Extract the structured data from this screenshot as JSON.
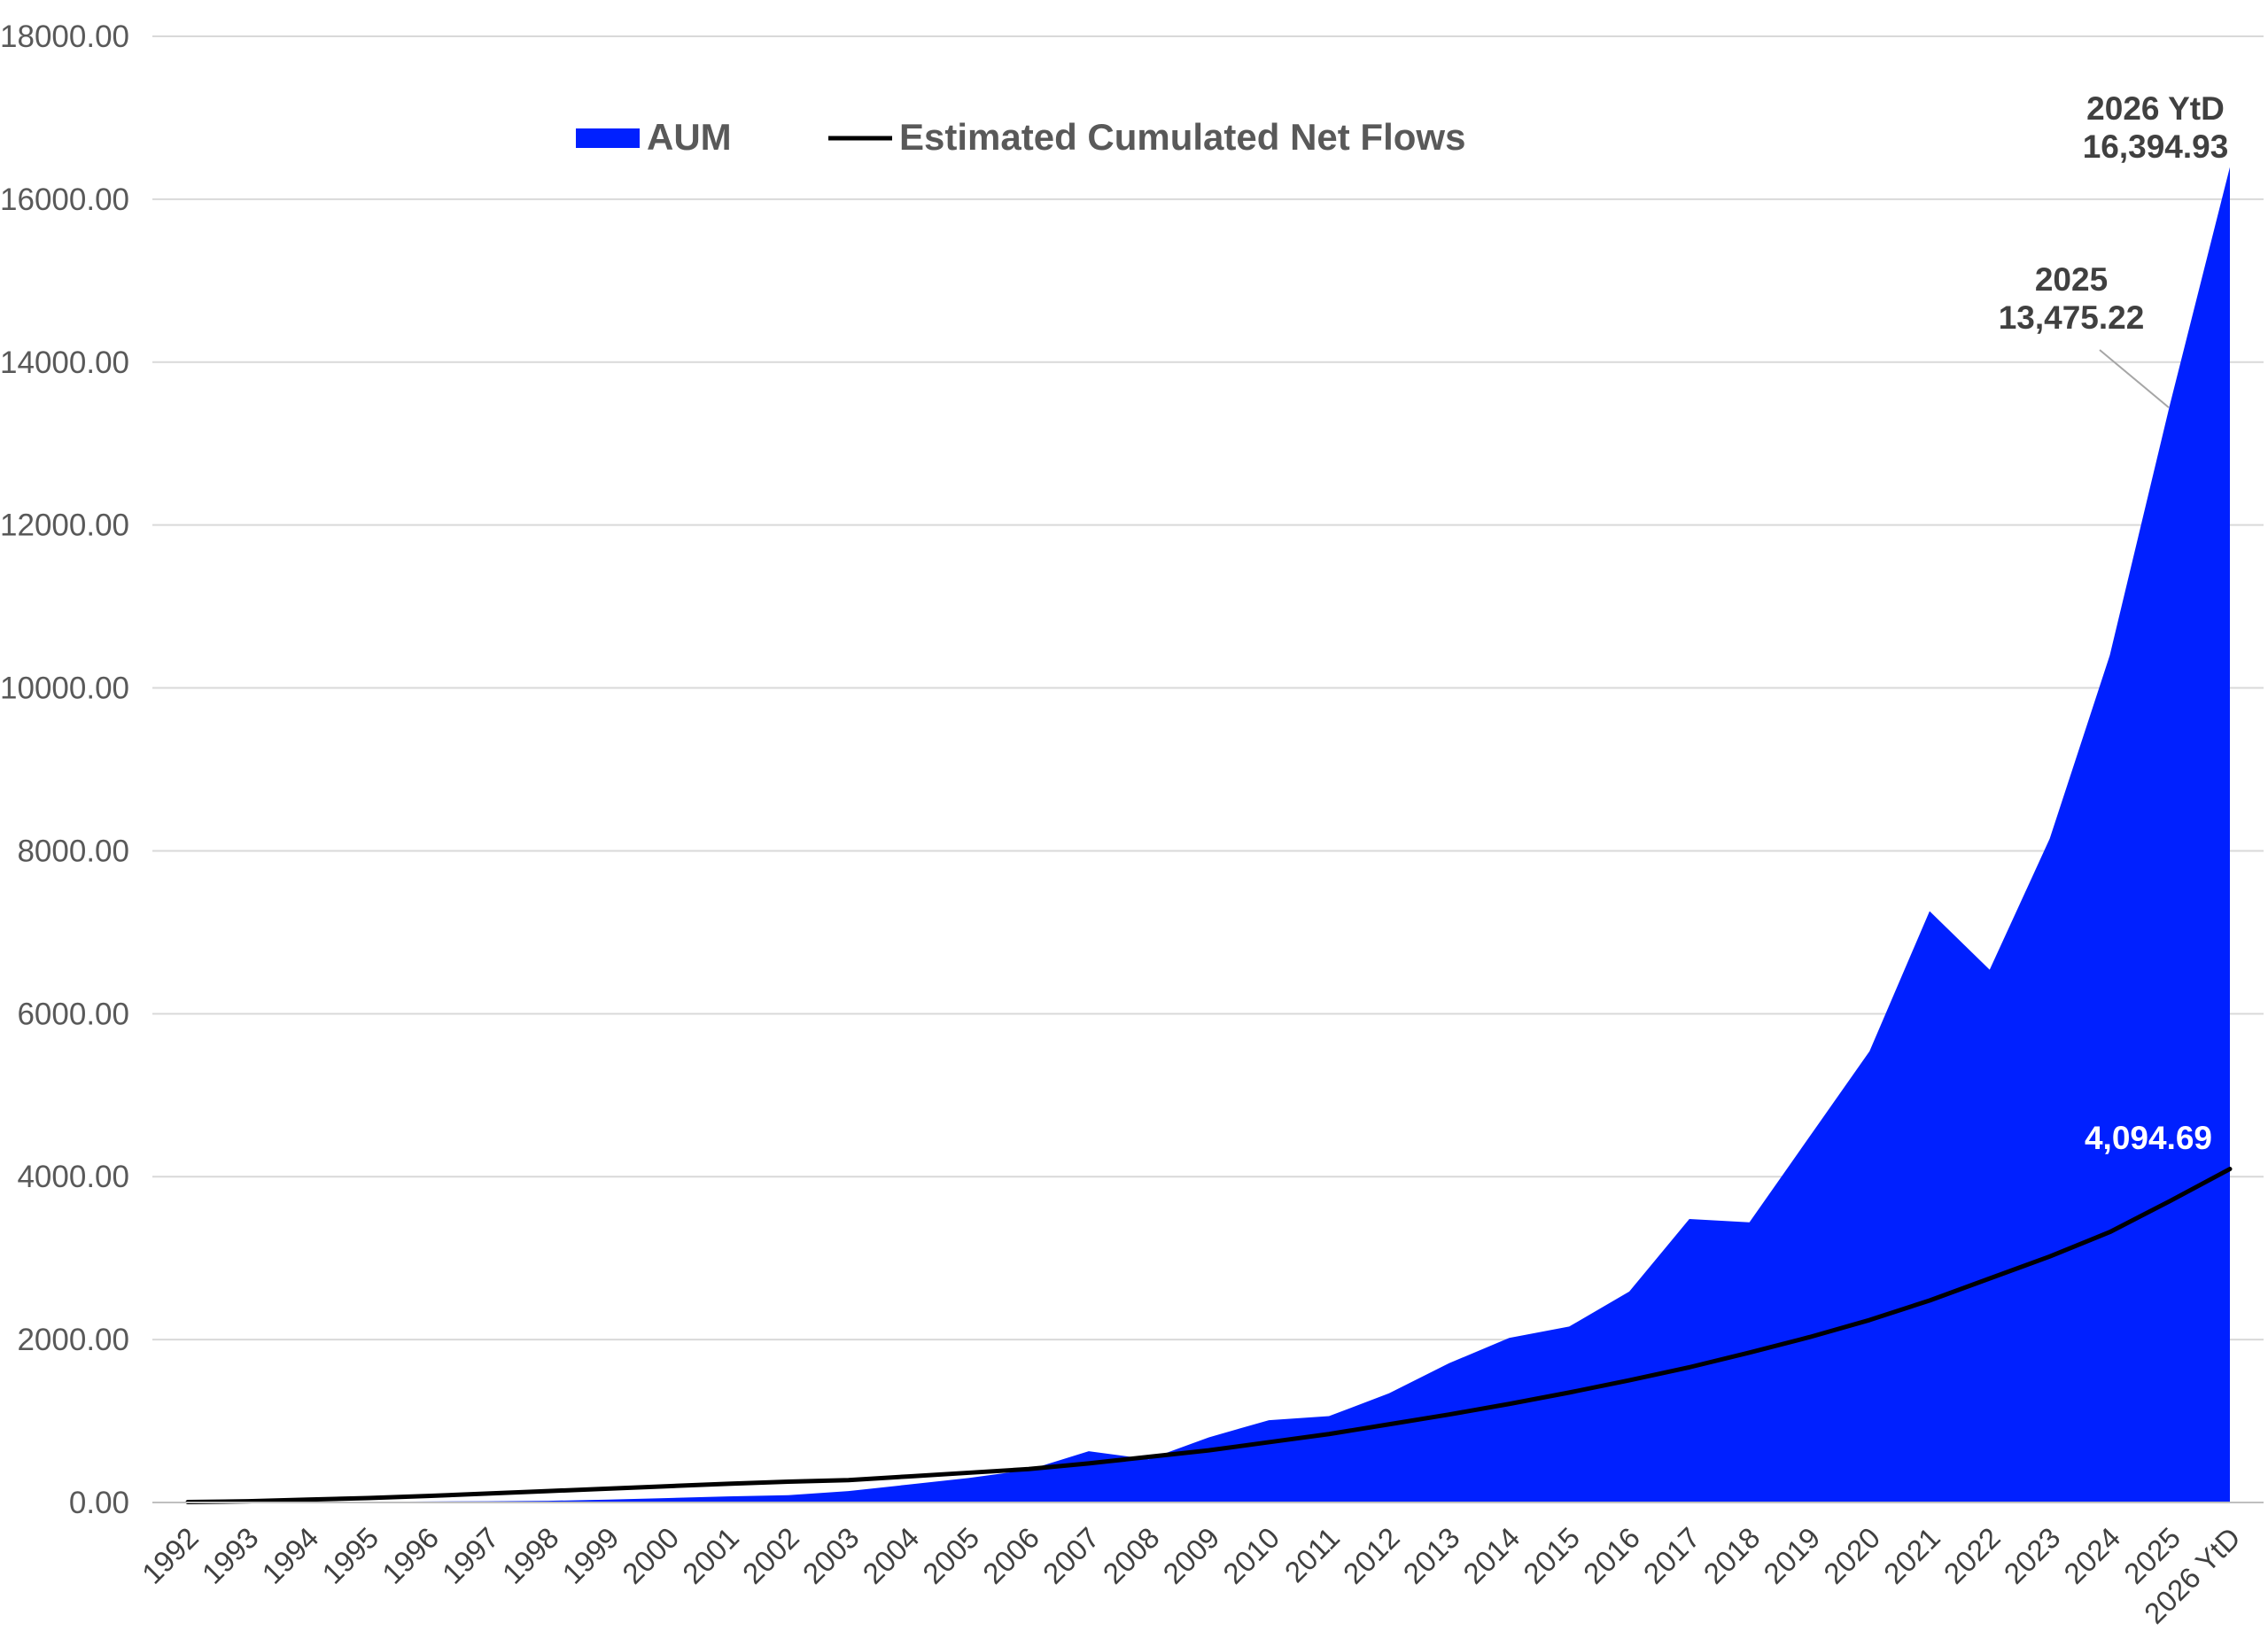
{
  "chart_data": {
    "type": "area",
    "categories": [
      "1992",
      "1993",
      "1994",
      "1995",
      "1996",
      "1997",
      "1998",
      "1999",
      "2000",
      "2001",
      "2002",
      "2003",
      "2004",
      "2005",
      "2006",
      "2007",
      "2008",
      "2009",
      "2010",
      "2011",
      "2012",
      "2013",
      "2014",
      "2015",
      "2016",
      "2017",
      "2018",
      "2019",
      "2020",
      "2021",
      "2022",
      "2023",
      "2024",
      "2025",
      "2026 YtD"
    ],
    "series": [
      {
        "name": "AUM",
        "kind": "area",
        "color": "#0020ff",
        "values": [
          0,
          2,
          5,
          8,
          12,
          15,
          20,
          35,
          55,
          75,
          90,
          140,
          220,
          300,
          400,
          630,
          530,
          800,
          1010,
          1060,
          1340,
          1710,
          2020,
          2160,
          2590,
          3480,
          3440,
          4490,
          5540,
          7260,
          6540,
          8150,
          10400,
          13475.22,
          16394.93
        ]
      },
      {
        "name": "Estimated Cumulated Net Flows",
        "kind": "line",
        "color": "#000000",
        "values": [
          5,
          15,
          35,
          55,
          80,
          110,
          140,
          170,
          200,
          230,
          255,
          275,
          320,
          365,
          410,
          480,
          560,
          640,
          740,
          840,
          960,
          1080,
          1210,
          1350,
          1500,
          1660,
          1840,
          2030,
          2240,
          2480,
          2750,
          3020,
          3320,
          3700,
          4094.69
        ]
      }
    ],
    "yticks": [
      "0.00",
      "2000.00",
      "4000.00",
      "6000.00",
      "8000.00",
      "10000.00",
      "12000.00",
      "14000.00",
      "16000.00",
      "18000.00"
    ],
    "ylim": [
      0,
      18000
    ],
    "grid": "horizontal",
    "legend": "top-center",
    "title": "",
    "xlabel": "",
    "ylabel": "",
    "annotations": [
      {
        "line1": "2026 YtD",
        "line2": "16,394.93"
      },
      {
        "line1": "2025",
        "line2": "13,475.22"
      },
      {
        "line1": "4,094.69"
      }
    ]
  }
}
